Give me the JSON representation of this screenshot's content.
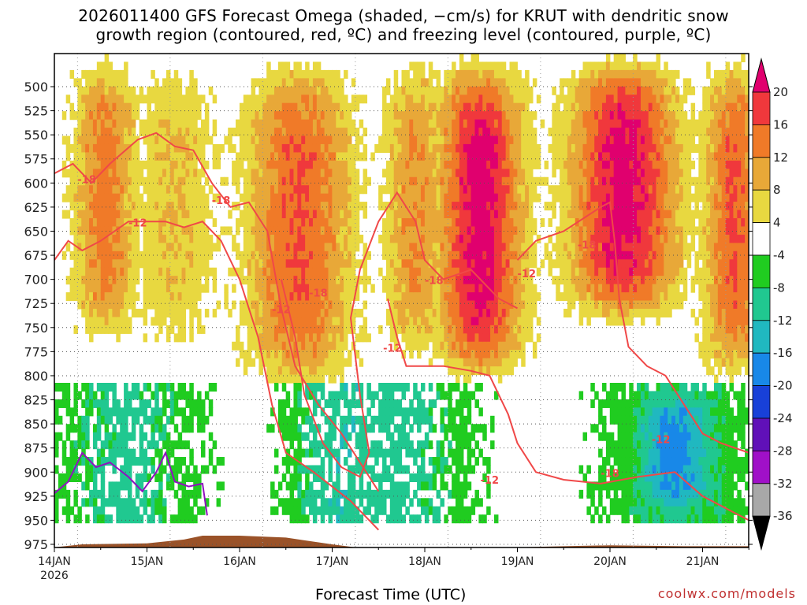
{
  "titles": {
    "line1": "2026011400 GFS Forecast Omega (shaded, −cm/s) for KRUT with dendritic snow",
    "line2": "growth region (contoured, red, ºC) and freezing level (contoured, purple, ºC)"
  },
  "credit": "coolwx.com/models",
  "chart_data": {
    "type": "heatmap",
    "title": "2026011400 GFS Forecast Omega (shaded, −cm/s) for KRUT with dendritic snow growth region (contoured, red, ºC) and freezing level (contoured, purple, ºC)",
    "xlabel": "Forecast Time (UTC)",
    "ylabel": "",
    "x_ticks": [
      "14JAN",
      "15JAN",
      "16JAN",
      "17JAN",
      "18JAN",
      "19JAN",
      "20JAN",
      "21JAN"
    ],
    "x_year": "2026",
    "y_ticks": [
      500,
      525,
      550,
      575,
      600,
      625,
      650,
      675,
      700,
      725,
      750,
      775,
      800,
      825,
      850,
      875,
      900,
      925,
      950,
      975
    ],
    "y_axis": "pressure (hPa), inverted",
    "xlim_days": [
      0,
      7.5
    ],
    "ylim": [
      480,
      985
    ],
    "colorbar": {
      "ticks": [
        20,
        16,
        12,
        8,
        4,
        -4,
        -8,
        -12,
        -16,
        -20,
        -24,
        -28,
        -32,
        -36
      ],
      "colors": [
        "#e0006e",
        "#f0383c",
        "#f07a28",
        "#e8a838",
        "#e8d840",
        "#ffffff",
        "#20cc20",
        "#20c890",
        "#20b8c0",
        "#1888e8",
        "#1840d8",
        "#6010b8",
        "#a010c8",
        "#a8a8a8",
        "#000000"
      ]
    },
    "omega_features": [
      {
        "day_center": 0.55,
        "p_top": 480,
        "p_bottom": 780,
        "max": 14
      },
      {
        "day_center": 1.3,
        "p_top": 480,
        "p_bottom": 790,
        "max": 8
      },
      {
        "day_center": 2.65,
        "p_top": 480,
        "p_bottom": 830,
        "max": 16
      },
      {
        "day_center": 3.9,
        "p_top": 480,
        "p_bottom": 800,
        "max": 12
      },
      {
        "day_center": 4.6,
        "p_top": 480,
        "p_bottom": 820,
        "max": 22
      },
      {
        "day_center": 6.15,
        "p_top": 480,
        "p_bottom": 760,
        "max": 22
      },
      {
        "day_center": 7.35,
        "p_top": 480,
        "p_bottom": 820,
        "max": 16
      },
      {
        "day_center": 6.7,
        "p_top": 820,
        "p_bottom": 960,
        "max": -18
      }
    ],
    "contour_labels": [
      "-18",
      "-12",
      "-18",
      "-12",
      "-18",
      "-12",
      "-18",
      "-12",
      "-18",
      "-12",
      "-18",
      "-12"
    ]
  }
}
